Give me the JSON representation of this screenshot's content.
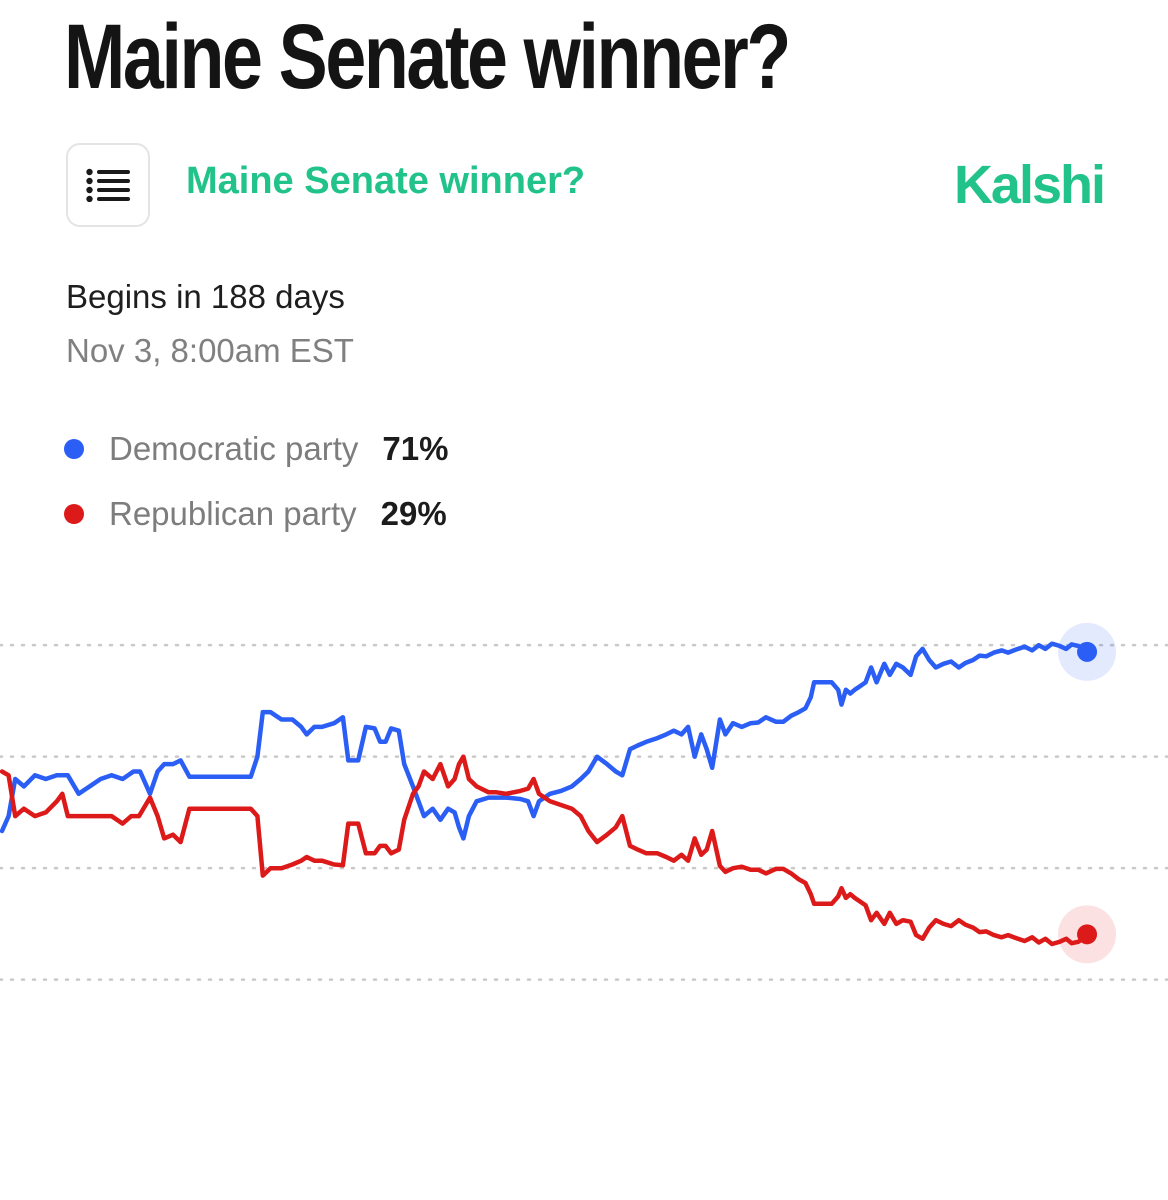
{
  "headline": "Maine Senate winner?",
  "header": {
    "menu_icon": "list-icon",
    "market_title": "Maine Senate winner?",
    "brand": "Kalshi",
    "brand_color": "#22c38a"
  },
  "schedule": {
    "begins": "Begins in 188 days",
    "datetime": "Nov 3, 8:00am EST"
  },
  "legend": [
    {
      "name": "Democratic party",
      "value": "71%",
      "color": "#2a5ef5"
    },
    {
      "name": "Republican party",
      "value": "29%",
      "color": "#dd1a1a"
    }
  ],
  "chart_data": {
    "type": "line",
    "ylim": [
      20,
      80
    ],
    "gridlines": [
      30,
      45,
      60,
      75
    ],
    "grid_style": "dotted",
    "x_range": [
      0,
      100
    ],
    "series": [
      {
        "name": "Democratic party",
        "color": "#2a5ef5",
        "points": [
          [
            0,
            50
          ],
          [
            0.6,
            52
          ],
          [
            1.2,
            57
          ],
          [
            2,
            56
          ],
          [
            3,
            57.5
          ],
          [
            4,
            57
          ],
          [
            5,
            57.5
          ],
          [
            6,
            57.5
          ],
          [
            7,
            55
          ],
          [
            8,
            56
          ],
          [
            9,
            57
          ],
          [
            10,
            57.5
          ],
          [
            11,
            57
          ],
          [
            11.5,
            57.5
          ],
          [
            12,
            58
          ],
          [
            12.6,
            58
          ],
          [
            13.5,
            55
          ],
          [
            14.2,
            58
          ],
          [
            14.8,
            59
          ],
          [
            15.6,
            59
          ],
          [
            16.3,
            59.5
          ],
          [
            17.1,
            57.3
          ],
          [
            18.5,
            57.3
          ],
          [
            20,
            57.3
          ],
          [
            21.5,
            57.3
          ],
          [
            22.7,
            57.3
          ],
          [
            23.3,
            60
          ],
          [
            23.8,
            66
          ],
          [
            24.5,
            66
          ],
          [
            25.5,
            65
          ],
          [
            26.5,
            65
          ],
          [
            27.3,
            64
          ],
          [
            27.8,
            63
          ],
          [
            28.5,
            64
          ],
          [
            29.2,
            64
          ],
          [
            30.3,
            64.5
          ],
          [
            31.1,
            65.3
          ],
          [
            31.6,
            59.5
          ],
          [
            32.5,
            59.5
          ],
          [
            33.2,
            64
          ],
          [
            34,
            63.8
          ],
          [
            34.5,
            62
          ],
          [
            35,
            62
          ],
          [
            35.5,
            63.8
          ],
          [
            36.2,
            63.5
          ],
          [
            36.7,
            59
          ],
          [
            37.5,
            56
          ],
          [
            38,
            54
          ],
          [
            38.5,
            52
          ],
          [
            39.3,
            53
          ],
          [
            40,
            51.5
          ],
          [
            40.7,
            53
          ],
          [
            41.3,
            52.5
          ],
          [
            41.7,
            50.5
          ],
          [
            42.1,
            49
          ],
          [
            42.6,
            52
          ],
          [
            43.3,
            54
          ],
          [
            44.4,
            54.5
          ],
          [
            45.1,
            54.5
          ],
          [
            46,
            54.5
          ],
          [
            47.3,
            54.3
          ],
          [
            48,
            54
          ],
          [
            48.5,
            52
          ],
          [
            49,
            54
          ],
          [
            50,
            55
          ],
          [
            51,
            55.4
          ],
          [
            52,
            56
          ],
          [
            52.8,
            57
          ],
          [
            53.5,
            58
          ],
          [
            54.3,
            60
          ],
          [
            55.2,
            59
          ],
          [
            56,
            58
          ],
          [
            56.6,
            57.5
          ],
          [
            57.3,
            61
          ],
          [
            58,
            61.5
          ],
          [
            58.8,
            62
          ],
          [
            59.8,
            62.5
          ],
          [
            60.6,
            63
          ],
          [
            61.3,
            63.5
          ],
          [
            62,
            63
          ],
          [
            62.6,
            64
          ],
          [
            63.2,
            60
          ],
          [
            63.8,
            63
          ],
          [
            64.3,
            61
          ],
          [
            64.8,
            58.5
          ],
          [
            65.5,
            65
          ],
          [
            66,
            63
          ],
          [
            66.7,
            64.5
          ],
          [
            67.5,
            64
          ],
          [
            68.3,
            64.5
          ],
          [
            69,
            64.6
          ],
          [
            69.7,
            65.3
          ],
          [
            70.6,
            64.7
          ],
          [
            71.3,
            64.7
          ],
          [
            72,
            65.5
          ],
          [
            72.7,
            66
          ],
          [
            73.3,
            66.5
          ],
          [
            73.8,
            68
          ],
          [
            74.1,
            70
          ],
          [
            74.7,
            70
          ],
          [
            75.7,
            70
          ],
          [
            76.3,
            69
          ],
          [
            76.6,
            67
          ],
          [
            77,
            69
          ],
          [
            77.4,
            68.5
          ],
          [
            77.8,
            69
          ],
          [
            78.3,
            69.5
          ],
          [
            78.8,
            70
          ],
          [
            79.3,
            72
          ],
          [
            79.8,
            70
          ],
          [
            80.5,
            72.5
          ],
          [
            81,
            71
          ],
          [
            81.6,
            72.5
          ],
          [
            82.2,
            72
          ],
          [
            82.9,
            71
          ],
          [
            83.4,
            73.5
          ],
          [
            84,
            74.5
          ],
          [
            84.6,
            73
          ],
          [
            85.2,
            72
          ],
          [
            85.9,
            72.5
          ],
          [
            86.6,
            72.8
          ],
          [
            87.3,
            72
          ],
          [
            87.9,
            72.6
          ],
          [
            88.6,
            73
          ],
          [
            89.2,
            73.6
          ],
          [
            89.8,
            73.5
          ],
          [
            90.5,
            74
          ],
          [
            91.2,
            74.3
          ],
          [
            91.8,
            74
          ],
          [
            92.5,
            74.4
          ],
          [
            93.3,
            74.8
          ],
          [
            94,
            74.3
          ],
          [
            94.6,
            75
          ],
          [
            95.2,
            74.5
          ],
          [
            95.8,
            75.2
          ],
          [
            96.5,
            74.9
          ],
          [
            97.1,
            74.5
          ],
          [
            97.6,
            75.1
          ],
          [
            98.2,
            74.9
          ],
          [
            98.6,
            74.5
          ],
          [
            99,
            74.1
          ]
        ]
      },
      {
        "name": "Republican party",
        "color": "#dd1a1a",
        "points": [
          [
            0,
            58
          ],
          [
            0.6,
            57.5
          ],
          [
            1.2,
            52
          ],
          [
            2,
            53
          ],
          [
            3,
            52
          ],
          [
            4,
            52.5
          ],
          [
            5,
            54
          ],
          [
            5.5,
            55
          ],
          [
            6,
            52
          ],
          [
            7,
            52
          ],
          [
            8,
            52
          ],
          [
            9,
            52
          ],
          [
            10,
            52
          ],
          [
            11,
            51
          ],
          [
            11.8,
            52
          ],
          [
            12.5,
            52
          ],
          [
            13.5,
            54.5
          ],
          [
            14.2,
            52
          ],
          [
            14.8,
            49
          ],
          [
            15.6,
            49.5
          ],
          [
            16.3,
            48.5
          ],
          [
            17.1,
            53
          ],
          [
            18.5,
            53
          ],
          [
            20,
            53
          ],
          [
            21.5,
            53
          ],
          [
            22.7,
            53
          ],
          [
            23.3,
            52
          ],
          [
            23.8,
            44
          ],
          [
            24.5,
            45
          ],
          [
            25.5,
            45
          ],
          [
            26.5,
            45.5
          ],
          [
            27.3,
            46
          ],
          [
            27.8,
            46.5
          ],
          [
            28.5,
            46
          ],
          [
            29.2,
            46
          ],
          [
            30.3,
            45.5
          ],
          [
            31.1,
            45.4
          ],
          [
            31.6,
            51
          ],
          [
            32.5,
            51
          ],
          [
            33.2,
            47
          ],
          [
            34,
            47
          ],
          [
            34.5,
            48
          ],
          [
            35,
            48
          ],
          [
            35.5,
            47
          ],
          [
            36.2,
            47.5
          ],
          [
            36.7,
            51.5
          ],
          [
            37.5,
            55
          ],
          [
            38,
            56
          ],
          [
            38.5,
            58
          ],
          [
            39.3,
            57
          ],
          [
            40,
            59
          ],
          [
            40.7,
            56
          ],
          [
            41.3,
            57
          ],
          [
            41.7,
            59
          ],
          [
            42.1,
            60
          ],
          [
            42.6,
            57
          ],
          [
            43.3,
            56
          ],
          [
            44.4,
            55.2
          ],
          [
            45.1,
            55.2
          ],
          [
            46,
            55
          ],
          [
            47.3,
            55.4
          ],
          [
            48,
            55.7
          ],
          [
            48.5,
            57
          ],
          [
            49,
            55
          ],
          [
            50,
            54
          ],
          [
            51,
            53.5
          ],
          [
            52,
            53
          ],
          [
            52.8,
            52
          ],
          [
            53.5,
            50
          ],
          [
            54.3,
            48.5
          ],
          [
            55.2,
            49.5
          ],
          [
            56,
            50.5
          ],
          [
            56.6,
            52
          ],
          [
            57.3,
            48
          ],
          [
            58,
            47.5
          ],
          [
            58.8,
            47
          ],
          [
            59.8,
            47
          ],
          [
            60.6,
            46.5
          ],
          [
            61.3,
            46
          ],
          [
            62,
            46.8
          ],
          [
            62.6,
            46
          ],
          [
            63.2,
            49
          ],
          [
            63.8,
            46.8
          ],
          [
            64.3,
            47.5
          ],
          [
            64.8,
            50
          ],
          [
            65.5,
            45.3
          ],
          [
            66,
            44.5
          ],
          [
            66.7,
            45
          ],
          [
            67.5,
            45.2
          ],
          [
            68.3,
            44.8
          ],
          [
            69,
            44.8
          ],
          [
            69.7,
            44.3
          ],
          [
            70.6,
            44.9
          ],
          [
            71.3,
            44.9
          ],
          [
            72,
            44.3
          ],
          [
            72.7,
            43.5
          ],
          [
            73.3,
            43
          ],
          [
            73.8,
            41.5
          ],
          [
            74.1,
            40.2
          ],
          [
            74.7,
            40.2
          ],
          [
            75.7,
            40.2
          ],
          [
            76.3,
            41.2
          ],
          [
            76.6,
            42.3
          ],
          [
            77,
            41
          ],
          [
            77.4,
            41.5
          ],
          [
            77.8,
            41
          ],
          [
            78.3,
            40.5
          ],
          [
            78.8,
            40
          ],
          [
            79.3,
            38
          ],
          [
            79.8,
            39
          ],
          [
            80.5,
            37.5
          ],
          [
            81,
            39
          ],
          [
            81.6,
            37.5
          ],
          [
            82.2,
            38
          ],
          [
            82.9,
            37.8
          ],
          [
            83.4,
            36
          ],
          [
            84,
            35.5
          ],
          [
            84.6,
            37
          ],
          [
            85.2,
            38
          ],
          [
            85.9,
            37.5
          ],
          [
            86.6,
            37.2
          ],
          [
            87.3,
            38
          ],
          [
            87.9,
            37.4
          ],
          [
            88.6,
            37
          ],
          [
            89.2,
            36.4
          ],
          [
            89.8,
            36.5
          ],
          [
            90.5,
            36
          ],
          [
            91.2,
            35.7
          ],
          [
            91.8,
            36
          ],
          [
            92.5,
            35.6
          ],
          [
            93.3,
            35.2
          ],
          [
            94,
            35.7
          ],
          [
            94.6,
            35
          ],
          [
            95.2,
            35.5
          ],
          [
            95.8,
            34.8
          ],
          [
            96.5,
            35.1
          ],
          [
            97.1,
            35.5
          ],
          [
            97.6,
            34.9
          ],
          [
            98.2,
            35.1
          ],
          [
            98.6,
            35.5
          ],
          [
            99,
            36.1
          ]
        ]
      }
    ]
  }
}
